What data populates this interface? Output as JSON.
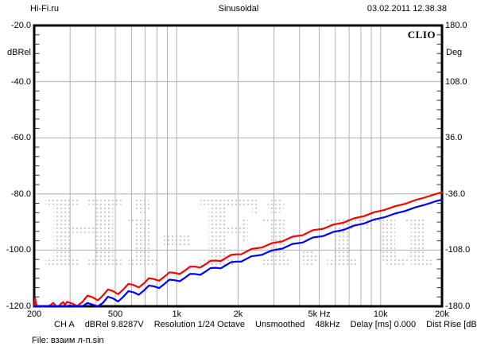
{
  "header": {
    "left": "Hi-Fi.ru",
    "center": "Sinusoidal",
    "right": "03.02.2011 12.38.38"
  },
  "brand": "CLIO",
  "watermark": "Hi-Fi.ru",
  "file_line": "File: взаим л-п.sin",
  "status_segments": [
    "CH A",
    "dBRel 9.8287V",
    "Resolution 1/24 Octave",
    "Unsmoothed",
    "48kHz",
    "Delay [ms] 0.000",
    "Dist Rise [dB] 30.00"
  ],
  "colors": {
    "curve_a": "#ff0000",
    "curve_b": "#0000ff",
    "grid": "#b0b0b0",
    "border": "#000000",
    "watermark_dots": "#c8c8c8",
    "tick": "#333333"
  },
  "chart_data": {
    "type": "line",
    "title": "Sinusoidal",
    "x_axis": {
      "label": "Hz",
      "scale": "log",
      "min": 200,
      "max": 20000,
      "ticks": [
        {
          "f": 200,
          "t": "200"
        },
        {
          "f": 500,
          "t": "500"
        },
        {
          "f": 1000,
          "t": "1k"
        },
        {
          "f": 2000,
          "t": "2k"
        },
        {
          "f": 5000,
          "t": "5k Hz"
        },
        {
          "f": 10000,
          "t": "10k"
        },
        {
          "f": 20000,
          "t": "20k"
        }
      ],
      "gridlines_hz": [
        300,
        400,
        500,
        600,
        700,
        800,
        900,
        1000,
        2000,
        3000,
        4000,
        5000,
        6000,
        7000,
        8000,
        9000,
        10000
      ]
    },
    "y_axis_left": {
      "label": "dBRel",
      "min": -120,
      "max": -20,
      "ticks": [
        {
          "v": -20,
          "t": "-20.0"
        },
        {
          "v": -40,
          "t": "-40.0"
        },
        {
          "v": -60,
          "t": "-60.0"
        },
        {
          "v": -80,
          "t": "-80.0"
        },
        {
          "v": -100,
          "t": "-100.0"
        },
        {
          "v": -120,
          "t": "-120.0"
        }
      ],
      "gridlines_db": [
        -40,
        -60,
        -80,
        -100
      ]
    },
    "y_axis_right": {
      "label": "Deg",
      "min": -180,
      "max": 180,
      "ticks": [
        {
          "v": 180,
          "t": "180.0"
        },
        {
          "v": 108,
          "t": "108.0"
        },
        {
          "v": 36,
          "t": "36.0"
        },
        {
          "v": -36,
          "t": "-36.0"
        },
        {
          "v": -108,
          "t": "-108.0"
        },
        {
          "v": -180,
          "t": "-180.0"
        }
      ]
    },
    "legend": "none",
    "grid": true,
    "series": [
      {
        "name": "distortion-curve-red",
        "color": "#ff0000",
        "points": [
          [
            200,
            -120
          ],
          [
            202,
            -117.2
          ],
          [
            205,
            -119.6
          ],
          [
            210,
            -120
          ],
          [
            222,
            -120
          ],
          [
            233,
            -120
          ],
          [
            241,
            -119.5
          ],
          [
            248,
            -118.8
          ],
          [
            255,
            -119.8
          ],
          [
            263,
            -120
          ],
          [
            270,
            -119.2
          ],
          [
            277,
            -118.5
          ],
          [
            283,
            -119.5
          ],
          [
            290,
            -118.4
          ],
          [
            307,
            -119.0
          ],
          [
            325,
            -119.9
          ],
          [
            345,
            -118.4
          ],
          [
            365,
            -116.2
          ],
          [
            387,
            -116.8
          ],
          [
            410,
            -117.9
          ],
          [
            434,
            -116.2
          ],
          [
            460,
            -114.0
          ],
          [
            487,
            -114.6
          ],
          [
            516,
            -115.7
          ],
          [
            547,
            -114.0
          ],
          [
            580,
            -112.0
          ],
          [
            614,
            -112.4
          ],
          [
            651,
            -113.3
          ],
          [
            690,
            -111.8
          ],
          [
            731,
            -110.0
          ],
          [
            774,
            -110.3
          ],
          [
            820,
            -110.9
          ],
          [
            869,
            -109.5
          ],
          [
            921,
            -107.9
          ],
          [
            976,
            -108.1
          ],
          [
            1034,
            -108.5
          ],
          [
            1095,
            -107.3
          ],
          [
            1161,
            -105.9
          ],
          [
            1230,
            -105.9
          ],
          [
            1303,
            -106.2
          ],
          [
            1381,
            -105.1
          ],
          [
            1463,
            -103.8
          ],
          [
            1550,
            -103.7
          ],
          [
            1643,
            -103.9
          ],
          [
            1740,
            -102.8
          ],
          [
            1844,
            -101.7
          ],
          [
            1954,
            -101.5
          ],
          [
            2070,
            -101.5
          ],
          [
            2324,
            -99.6
          ],
          [
            2609,
            -99.1
          ],
          [
            2929,
            -97.5
          ],
          [
            3288,
            -96.9
          ],
          [
            3691,
            -95.2
          ],
          [
            4144,
            -94.7
          ],
          [
            4652,
            -92.9
          ],
          [
            5222,
            -92.4
          ],
          [
            5862,
            -90.9
          ],
          [
            6580,
            -90.2
          ],
          [
            7387,
            -88.7
          ],
          [
            8293,
            -87.9
          ],
          [
            9309,
            -86.5
          ],
          [
            10450,
            -85.7
          ],
          [
            11731,
            -84.4
          ],
          [
            13169,
            -83.5
          ],
          [
            14783,
            -82.2
          ],
          [
            16595,
            -81.2
          ],
          [
            18629,
            -80.0
          ],
          [
            20000,
            -79.4
          ]
        ]
      },
      {
        "name": "distortion-curve-blue",
        "color": "#0000ff",
        "points": [
          [
            200,
            -120
          ],
          [
            240,
            -120
          ],
          [
            270,
            -120
          ],
          [
            290,
            -120
          ],
          [
            300,
            -119.6
          ],
          [
            307,
            -120
          ],
          [
            325,
            -120
          ],
          [
            345,
            -120
          ],
          [
            365,
            -118.8
          ],
          [
            387,
            -119.4
          ],
          [
            410,
            -120
          ],
          [
            434,
            -118.8
          ],
          [
            460,
            -116.6
          ],
          [
            487,
            -117.2
          ],
          [
            516,
            -118.3
          ],
          [
            547,
            -116.6
          ],
          [
            580,
            -114.6
          ],
          [
            614,
            -115.0
          ],
          [
            651,
            -115.9
          ],
          [
            690,
            -114.4
          ],
          [
            731,
            -112.6
          ],
          [
            774,
            -112.9
          ],
          [
            820,
            -113.5
          ],
          [
            869,
            -112.1
          ],
          [
            921,
            -110.5
          ],
          [
            976,
            -110.7
          ],
          [
            1034,
            -111.1
          ],
          [
            1095,
            -109.9
          ],
          [
            1161,
            -108.5
          ],
          [
            1230,
            -108.5
          ],
          [
            1303,
            -108.8
          ],
          [
            1381,
            -107.7
          ],
          [
            1463,
            -106.4
          ],
          [
            1550,
            -106.3
          ],
          [
            1643,
            -106.5
          ],
          [
            1740,
            -105.4
          ],
          [
            1844,
            -104.3
          ],
          [
            1954,
            -104.1
          ],
          [
            2070,
            -104.1
          ],
          [
            2324,
            -102.2
          ],
          [
            2609,
            -101.7
          ],
          [
            2929,
            -100.1
          ],
          [
            3288,
            -99.5
          ],
          [
            3691,
            -97.8
          ],
          [
            4144,
            -97.3
          ],
          [
            4652,
            -95.5
          ],
          [
            5222,
            -95.0
          ],
          [
            5862,
            -93.5
          ],
          [
            6580,
            -92.8
          ],
          [
            7387,
            -91.3
          ],
          [
            8293,
            -90.5
          ],
          [
            9309,
            -89.1
          ],
          [
            10450,
            -88.3
          ],
          [
            11731,
            -87.0
          ],
          [
            13169,
            -86.1
          ],
          [
            14783,
            -84.8
          ],
          [
            16595,
            -83.8
          ],
          [
            18629,
            -82.6
          ],
          [
            20000,
            -82.0
          ]
        ]
      }
    ]
  }
}
